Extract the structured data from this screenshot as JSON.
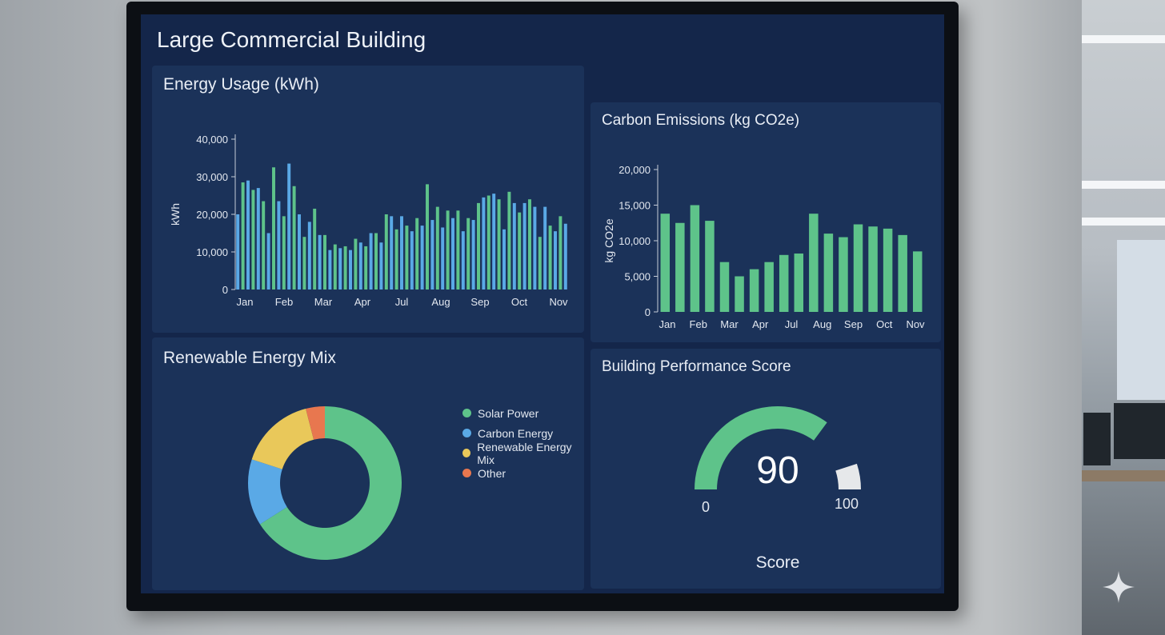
{
  "dashboard": {
    "title": "Large Commercial Building"
  },
  "colors": {
    "green": "#5ec38a",
    "blue": "#5aa9e6",
    "yellow": "#e9c85a",
    "orange": "#e8774f",
    "white_track": "#e6e8ea"
  },
  "chart_data": [
    {
      "id": "energy",
      "type": "bar",
      "title": "Energy Usage (kWh)",
      "ylabel": "kWh",
      "xlabel": "",
      "ylim": [
        0,
        40000
      ],
      "yticks": [
        0,
        10000,
        20000,
        30000,
        40000
      ],
      "ytick_labels": [
        "0",
        "10,000",
        "20,000",
        "30,000",
        "40,000"
      ],
      "xtick_labels": [
        "Jan",
        "Feb",
        "Mar",
        "Apr",
        "Jul",
        "Aug",
        "Sep",
        "Oct",
        "Nov"
      ],
      "values": [
        20000,
        28500,
        29000,
        26500,
        27000,
        23500,
        15000,
        32500,
        23500,
        19500,
        33500,
        27500,
        20000,
        14000,
        18000,
        21500,
        14500,
        14500,
        10500,
        12000,
        11000,
        11500,
        10500,
        13500,
        12500,
        11500,
        15000,
        15000,
        12500,
        20000,
        19500,
        16000,
        19500,
        17000,
        15500,
        19000,
        17000,
        28000,
        18500,
        22000,
        16500,
        21000,
        19000,
        21000,
        15500,
        19000,
        18500,
        23000,
        24500,
        25000,
        25500,
        24000,
        16000,
        26000,
        23000,
        20500,
        23000,
        24000,
        22000,
        14000,
        22000,
        17000,
        15500,
        19500,
        17500
      ],
      "series_colors_pattern": [
        "blue",
        "green"
      ]
    },
    {
      "id": "carbon",
      "type": "bar",
      "title": "Carbon Emissions (kg CO2e)",
      "ylabel": "kg CO2e",
      "xlabel": "",
      "ylim": [
        0,
        20000
      ],
      "yticks": [
        0,
        5000,
        10000,
        15000,
        20000
      ],
      "ytick_labels": [
        "0",
        "5,000",
        "10,000",
        "15,000",
        "20,000"
      ],
      "xtick_labels": [
        "Jan",
        "Feb",
        "Mar",
        "Apr",
        "Jul",
        "Aug",
        "Sep",
        "Oct",
        "Nov"
      ],
      "values": [
        13800,
        12500,
        15000,
        12800,
        7000,
        5000,
        6000,
        7000,
        8000,
        8200,
        13800,
        11000,
        10500,
        12300,
        12000,
        11700,
        10800,
        8500
      ]
    },
    {
      "id": "mix",
      "type": "pie",
      "title": "Renewable Energy Mix",
      "labels": [
        "Solar Power",
        "Carbon Energy",
        "Renewable Energy Mix",
        "Other"
      ],
      "values": [
        66,
        14,
        16,
        4
      ],
      "colors": [
        "green",
        "blue",
        "yellow",
        "orange"
      ]
    },
    {
      "id": "score",
      "type": "gauge",
      "title": "Building Performance Score",
      "value": 90,
      "min": 0,
      "max": 100,
      "value_label": "90",
      "min_label": "0",
      "max_label": "100",
      "caption": "Score"
    }
  ]
}
